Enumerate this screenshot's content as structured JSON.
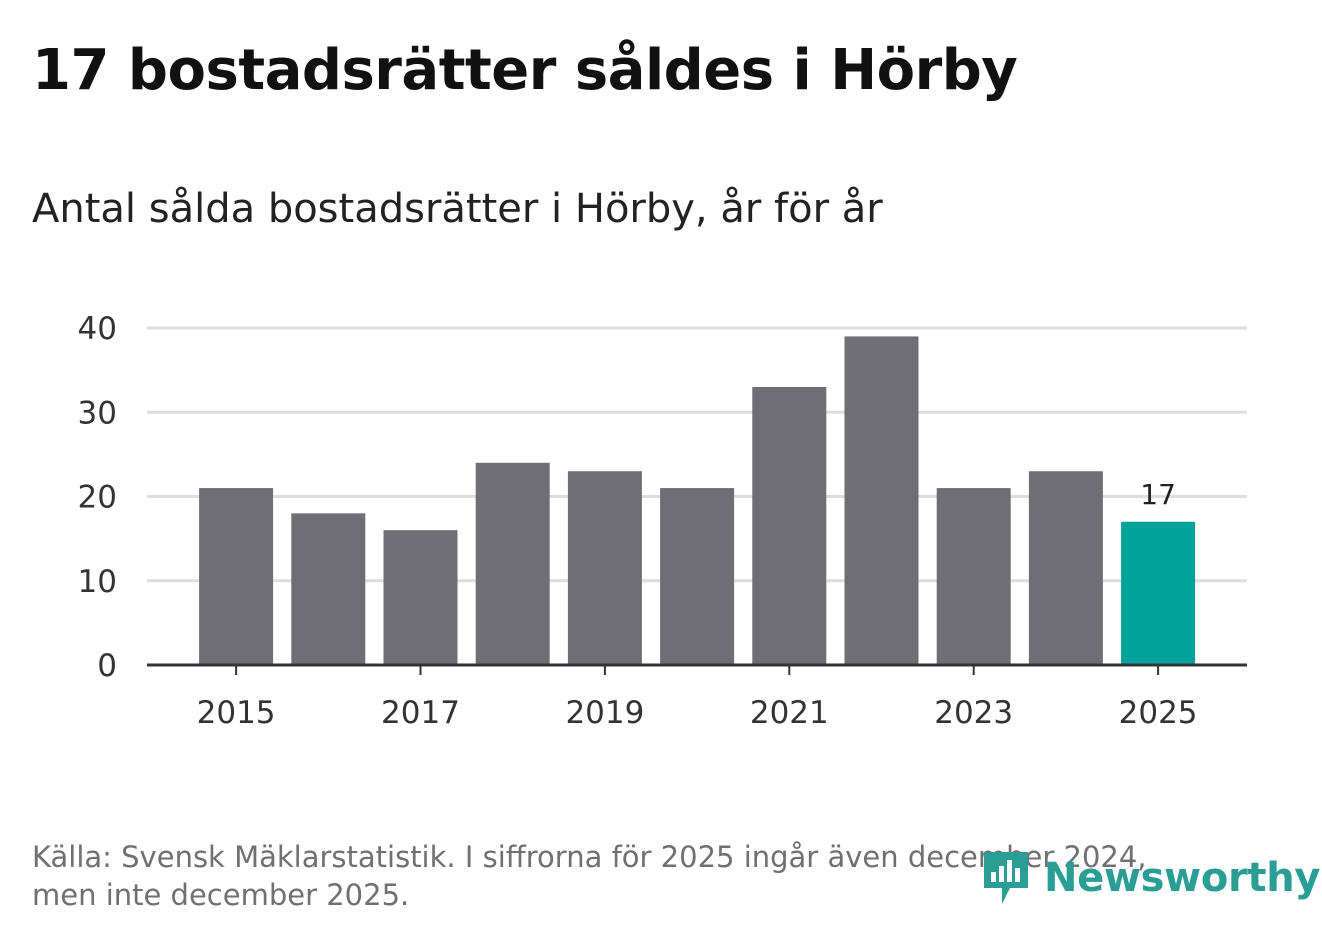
{
  "title": "17 bostadsrätter såldes i Hörby",
  "subtitle": "Antal sålda bostadsrätter i Hörby, år för år",
  "source_line1": "Källa: Svensk Mäklarstatistik. I siffrorna för 2025 ingår även december 2024,",
  "source_line2": "men inte december 2025.",
  "brand": "Newsworthy",
  "colors": {
    "bar": "#6f6e75",
    "highlight": "#00a39a",
    "grid": "#dddddd",
    "axis": "#333333",
    "brand": "#2a9d94"
  },
  "chart_data": {
    "type": "bar",
    "title": "Antal sålda bostadsrätter i Hörby, år för år",
    "xlabel": "",
    "ylabel": "",
    "categories": [
      "2015",
      "2016",
      "2017",
      "2018",
      "2019",
      "2020",
      "2021",
      "2022",
      "2023",
      "2024",
      "2025"
    ],
    "values": [
      21,
      18,
      16,
      24,
      23,
      21,
      33,
      39,
      21,
      23,
      17
    ],
    "highlight_category": "2025",
    "ylim": [
      0,
      40
    ],
    "yticks": [
      0,
      10,
      20,
      30,
      40
    ],
    "xtick_labels": [
      "2015",
      "2017",
      "2019",
      "2021",
      "2023",
      "2025"
    ],
    "annotation": {
      "category": "2025",
      "text": "17"
    },
    "grid": true,
    "legend": "none"
  }
}
